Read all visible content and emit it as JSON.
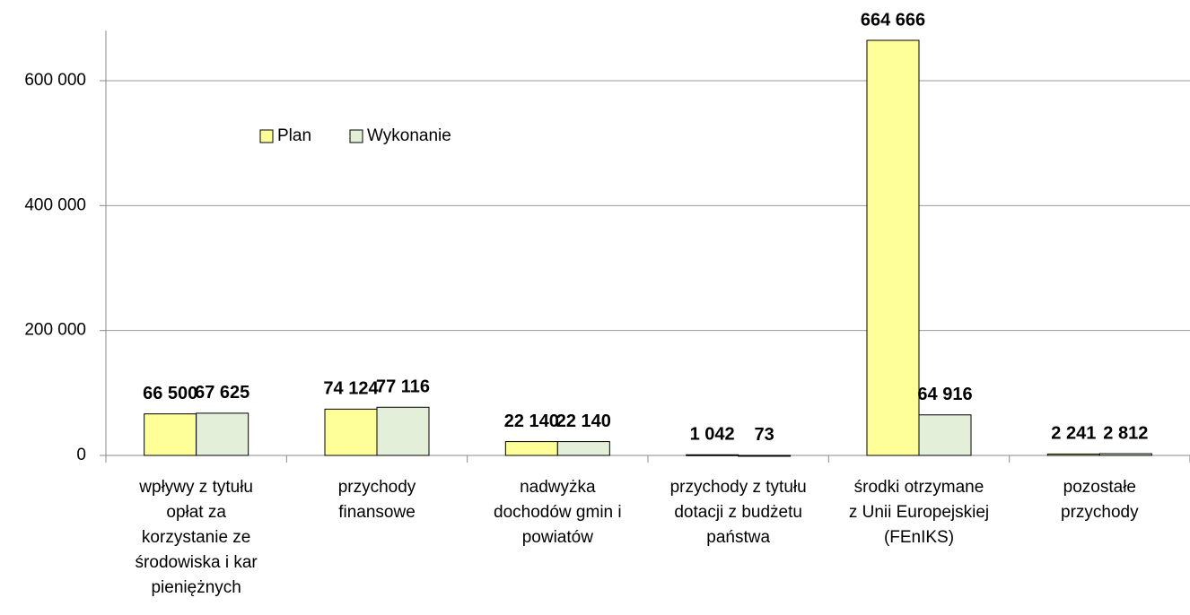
{
  "chart_data": {
    "type": "bar",
    "categories": [
      "wpływy z tytułu\nopłat za\nkorzystanie ze\nśrodowiska i kar\npieniężnych",
      "przychody\nfinansowe",
      "nadwyżka\ndochodów gmin i\npowiatów",
      "przychody z tytułu\ndotacji z budżetu\npaństwa",
      "środki otrzymane\nz Unii Europejskiej\n(FEnIKS)",
      "pozostałe\nprzychody"
    ],
    "series": [
      {
        "name": "Plan",
        "color": "#ffff99",
        "values": [
          66500,
          74124,
          22140,
          1042,
          664666,
          2241
        ],
        "value_labels": [
          "66 500",
          "74 124",
          "22 140",
          "1 042",
          "664 666",
          "2 241"
        ]
      },
      {
        "name": "Wykonanie",
        "color": "#e4efd9",
        "values": [
          67625,
          77116,
          22140,
          73,
          64916,
          2812
        ],
        "value_labels": [
          "67 625",
          "77 116",
          "22 140",
          "73",
          "64 916",
          "2 812"
        ]
      }
    ],
    "ylim": [
      0,
      680000
    ],
    "yticks": [
      0,
      {
        "value": 200000,
        "label": "200 000"
      },
      {
        "value": 400000,
        "label": "400 000"
      },
      {
        "value": 600000,
        "label": "600 000"
      }
    ],
    "grid": true,
    "legend": "top-left"
  }
}
